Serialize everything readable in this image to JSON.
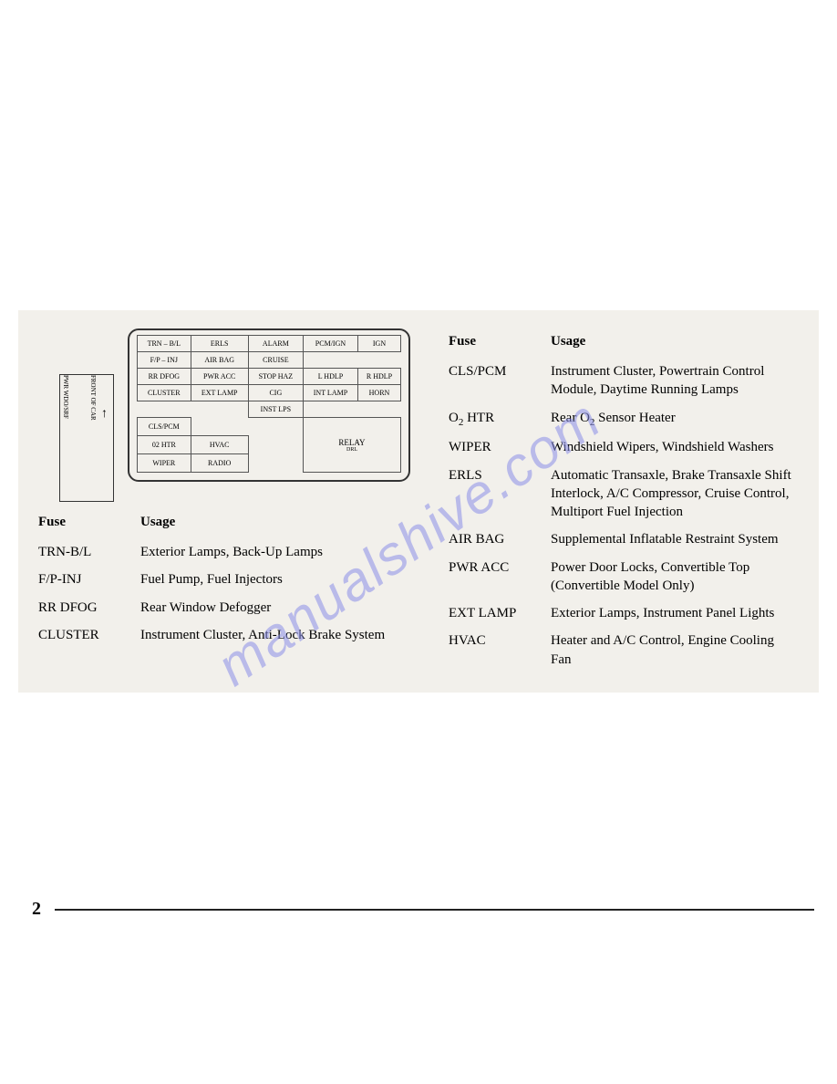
{
  "watermark": "manualshive.com",
  "page_number": "2",
  "diagram": {
    "side_label_1": "PWR WDO/SRF",
    "side_label_2": "FRONT OF CAR",
    "grid": [
      [
        "TRN – B/L",
        "ERLS",
        "ALARM",
        "PCM/IGN",
        "IGN"
      ],
      [
        "F/P – INJ",
        "AIR BAG",
        "CRUISE",
        "",
        ""
      ],
      [
        "RR DFOG",
        "PWR ACC",
        "STOP HAZ",
        "L HDLP",
        "R HDLP"
      ],
      [
        "CLUSTER",
        "EXT LAMP",
        "CIG",
        "INT LAMP",
        "HORN"
      ],
      [
        "",
        "",
        "INST LPS",
        "",
        ""
      ],
      [
        "CLS/PCM",
        "",
        "",
        "",
        ""
      ],
      [
        "02 HTR",
        "HVAC",
        "",
        "",
        ""
      ],
      [
        "WIPER",
        "RADIO",
        "",
        "",
        ""
      ]
    ],
    "relay_label": "RELAY",
    "relay_sub": "DRL"
  },
  "left_table": {
    "headers": [
      "Fuse",
      "Usage"
    ],
    "rows": [
      {
        "fuse": "TRN-B/L",
        "usage": "Exterior Lamps, Back-Up Lamps"
      },
      {
        "fuse": "F/P-INJ",
        "usage": "Fuel Pump, Fuel Injectors"
      },
      {
        "fuse": "RR DFOG",
        "usage": "Rear Window Defogger"
      },
      {
        "fuse": "CLUSTER",
        "usage": "Instrument Cluster, Anti-Lock Brake System"
      }
    ]
  },
  "right_table": {
    "headers": [
      "Fuse",
      "Usage"
    ],
    "rows": [
      {
        "fuse": "CLS/PCM",
        "usage": "Instrument Cluster, Powertrain Control Module, Daytime Running Lamps"
      },
      {
        "fuse": "O2 HTR",
        "fuse_html": "O<span class='sub'>2</span> HTR",
        "usage": "Rear O2 Sensor Heater",
        "usage_html": "Rear O<span class='sub'>2</span> Sensor Heater"
      },
      {
        "fuse": "WIPER",
        "usage": "Windshield Wipers, Windshield Washers"
      },
      {
        "fuse": "ERLS",
        "usage": "Automatic Transaxle, Brake Transaxle Shift Interlock, A/C Compressor, Cruise Control, Multiport Fuel Injection"
      },
      {
        "fuse": "AIR BAG",
        "usage": "Supplemental Inflatable Restraint System"
      },
      {
        "fuse": "PWR ACC",
        "usage": "Power Door Locks, Convertible Top (Convertible Model Only)"
      },
      {
        "fuse": "EXT LAMP",
        "usage": "Exterior Lamps, Instrument Panel Lights"
      },
      {
        "fuse": "HVAC",
        "usage": "Heater and A/C Control, Engine Cooling Fan"
      }
    ]
  },
  "colors": {
    "background": "#ffffff",
    "panel_bg": "#f2f0eb",
    "text": "#1a1a1a",
    "border": "#333333",
    "watermark": "#8b8fe8"
  }
}
